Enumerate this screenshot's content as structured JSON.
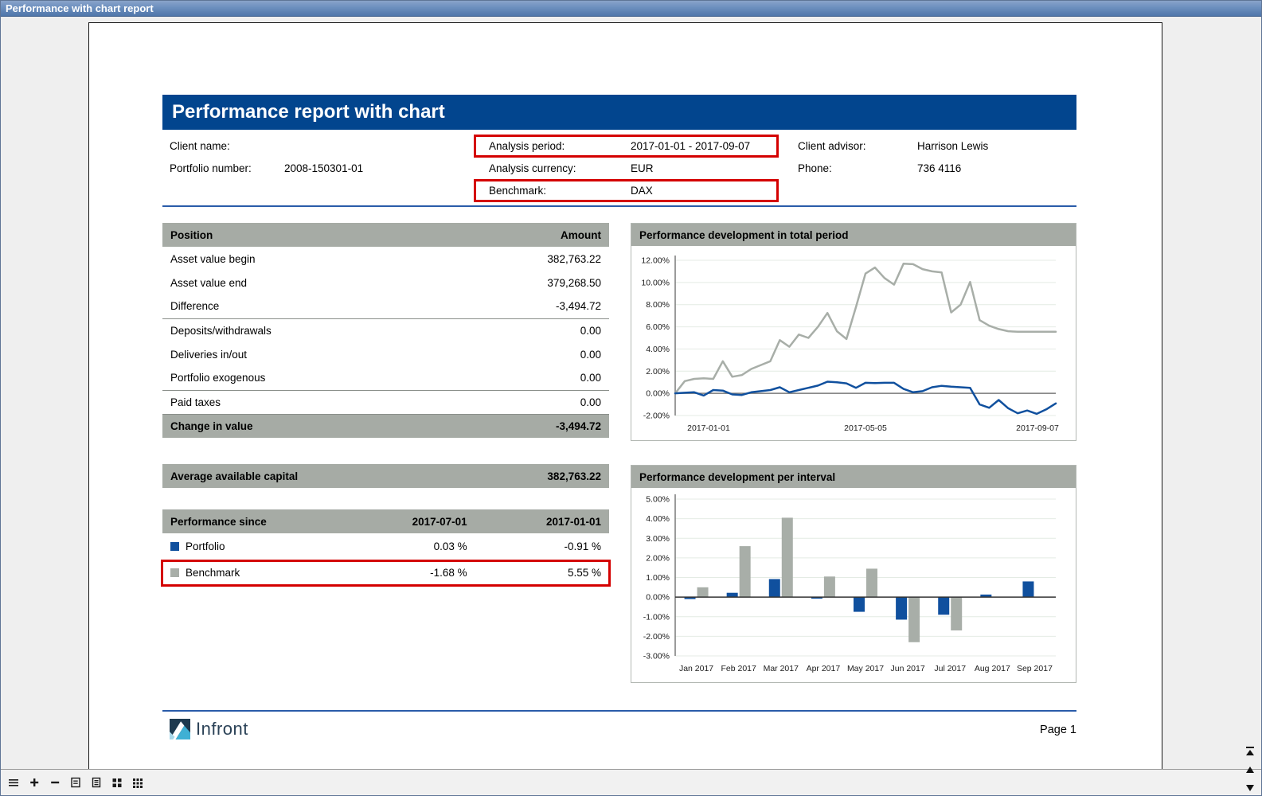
{
  "window": {
    "title": "Performance with chart report"
  },
  "report": {
    "title": "Performance report with chart",
    "fields": {
      "client_name": {
        "label": "Client name:",
        "value": ""
      },
      "portfolio_number": {
        "label": "Portfolio number:",
        "value": "2008-150301-01"
      },
      "analysis_period": {
        "label": "Analysis period:",
        "value": "2017-01-01 - 2017-09-07"
      },
      "analysis_currency": {
        "label": "Analysis currency:",
        "value": "EUR"
      },
      "benchmark": {
        "label": "Benchmark:",
        "value": "DAX"
      },
      "client_advisor": {
        "label": "Client advisor:",
        "value": "Harrison Lewis"
      },
      "phone": {
        "label": "Phone:",
        "value": "736 4116"
      }
    },
    "position_table": {
      "headers": [
        "Position",
        "Amount"
      ],
      "rows": [
        {
          "label": "Asset value begin",
          "value": "382,763.22"
        },
        {
          "label": "Asset value end",
          "value": "379,268.50"
        },
        {
          "label": "Difference",
          "value": "-3,494.72"
        },
        {
          "label": "Deposits/withdrawals",
          "value": "0.00"
        },
        {
          "label": "Deliveries in/out",
          "value": "0.00"
        },
        {
          "label": "Portfolio exogenous",
          "value": "0.00"
        },
        {
          "label": "Paid taxes",
          "value": "0.00"
        }
      ],
      "total": {
        "label": "Change in value",
        "value": "-3,494.72"
      }
    },
    "average_available_capital": {
      "label": "Average available capital",
      "value": "382,763.22"
    },
    "performance_table": {
      "headers": [
        "Performance since",
        "2017-07-01",
        "2017-01-01"
      ],
      "rows": [
        {
          "label": "Portfolio",
          "color": "#10509e",
          "values": [
            "0.03 %",
            "-0.91 %"
          ],
          "highlighted": false
        },
        {
          "label": "Benchmark",
          "color": "#a8aea8",
          "values": [
            "-1.68 %",
            "5.55 %"
          ],
          "highlighted": true
        }
      ]
    },
    "footer": {
      "logo": "Infront",
      "page": "Page 1"
    }
  },
  "chart_data": [
    {
      "type": "line",
      "title": "Performance development in total period",
      "ylabel": "",
      "xlabel": "",
      "ylim": [
        -2,
        12
      ],
      "ystep": 2,
      "grid": true,
      "legend": "none",
      "xlabels": [
        "2017-01-01",
        "2017-05-05",
        "2017-09-07"
      ],
      "series": [
        {
          "name": "Benchmark",
          "color": "#a8aea8",
          "values": [
            0,
            1.1,
            1.3,
            1.35,
            1.3,
            2.9,
            1.5,
            1.65,
            2.2,
            2.55,
            2.9,
            4.8,
            4.2,
            5.3,
            5.0,
            6.0,
            7.25,
            5.6,
            4.9,
            7.8,
            10.8,
            11.35,
            10.4,
            9.8,
            11.7,
            11.65,
            11.2,
            11.0,
            10.9,
            7.3,
            8.0,
            10.05,
            6.6,
            6.1,
            5.8,
            5.6,
            5.55,
            5.55,
            5.55,
            5.55,
            5.55
          ]
        },
        {
          "name": "Portfolio",
          "color": "#10509e",
          "values": [
            0,
            0.05,
            0.1,
            -0.2,
            0.3,
            0.25,
            -0.1,
            -0.15,
            0.1,
            0.2,
            0.3,
            0.55,
            0.1,
            0.3,
            0.5,
            0.7,
            1.05,
            1.0,
            0.9,
            0.5,
            0.95,
            0.92,
            0.95,
            0.95,
            0.4,
            0.1,
            0.2,
            0.55,
            0.68,
            0.6,
            0.55,
            0.5,
            -1.0,
            -1.3,
            -0.6,
            -1.35,
            -1.8,
            -1.55,
            -1.85,
            -1.45,
            -0.91
          ]
        }
      ]
    },
    {
      "type": "bar",
      "title": "Performance development per interval",
      "ylabel": "",
      "xlabel": "",
      "ylim": [
        -3,
        5
      ],
      "ystep": 1,
      "grid": true,
      "legend": "none",
      "categories": [
        "Jan 2017",
        "Feb 2017",
        "Mar 2017",
        "Apr 2017",
        "May 2017",
        "Jun 2017",
        "Jul 2017",
        "Aug 2017",
        "Sep 2017"
      ],
      "series": [
        {
          "name": "Portfolio",
          "color": "#10509e",
          "values": [
            -0.1,
            0.22,
            0.92,
            -0.08,
            -0.75,
            -1.15,
            -0.9,
            0.13,
            0.8
          ]
        },
        {
          "name": "Benchmark",
          "color": "#a8aea8",
          "values": [
            0.5,
            2.6,
            4.05,
            1.05,
            1.45,
            -2.3,
            -1.7,
            0,
            0
          ]
        }
      ]
    }
  ],
  "colors": {
    "banner": "#02458e",
    "table_header": "#a6aba5",
    "highlight": "#d40000",
    "portfolio": "#10509e",
    "benchmark": "#a8aea8"
  }
}
